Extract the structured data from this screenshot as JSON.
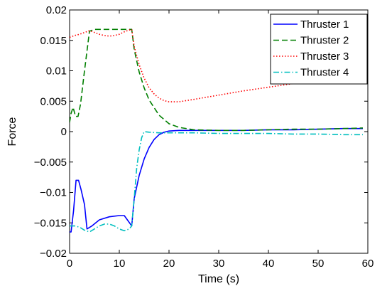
{
  "chart_data": {
    "type": "line",
    "title": "",
    "xlabel": "Time (s)",
    "ylabel": "Force",
    "xlim": [
      0,
      60
    ],
    "ylim": [
      -0.02,
      0.02
    ],
    "x_ticks": [
      0,
      10,
      20,
      30,
      40,
      50,
      60
    ],
    "x_tick_labels": [
      "0",
      "10",
      "20",
      "30",
      "40",
      "50",
      "60"
    ],
    "y_ticks": [
      -0.02,
      -0.015,
      -0.01,
      -0.005,
      0,
      0.005,
      0.01,
      0.015,
      0.02
    ],
    "y_tick_labels": [
      "−0.02",
      "−0.015",
      "−0.01",
      "−0.005",
      "0",
      "0.005",
      "0.01",
      "0.015",
      "0.02"
    ],
    "grid": false,
    "legend_position": "top-right",
    "series": [
      {
        "name": "Thruster 1",
        "color": "#0000ff",
        "dash": "solid",
        "x": [
          0,
          0.3,
          0.8,
          1.3,
          1.8,
          2.3,
          3.0,
          3.5,
          4.5,
          6,
          8,
          10,
          11,
          12.5,
          13,
          14,
          15,
          16,
          17,
          18,
          19,
          20,
          22,
          25,
          30,
          35,
          40,
          45,
          50,
          55,
          59
        ],
        "y": [
          -0.0165,
          -0.0165,
          -0.013,
          -0.008,
          -0.008,
          -0.0095,
          -0.012,
          -0.016,
          -0.0155,
          -0.0145,
          -0.014,
          -0.0138,
          -0.0138,
          -0.0155,
          -0.011,
          -0.0072,
          -0.0045,
          -0.0026,
          -0.0013,
          -0.0005,
          -0.0001,
          0.0001,
          0.0002,
          0.0002,
          0.0002,
          0.0002,
          0.0003,
          0.0003,
          0.0004,
          0.0005,
          0.0005
        ]
      },
      {
        "name": "Thruster 2",
        "color": "#007f00",
        "dash": "8,4",
        "x": [
          0,
          0.3,
          0.7,
          1.2,
          1.7,
          2.2,
          3.0,
          4.0,
          5,
          8,
          10,
          12.5,
          13,
          14,
          15,
          16,
          18,
          20,
          22,
          25,
          30,
          35,
          40,
          45,
          50,
          55,
          59
        ],
        "y": [
          0.0015,
          0.003,
          0.004,
          0.0025,
          0.0025,
          0.0045,
          0.01,
          0.0165,
          0.0168,
          0.0168,
          0.0168,
          0.0168,
          0.0135,
          0.0098,
          0.0072,
          0.0052,
          0.0027,
          0.0013,
          0.0007,
          0.0003,
          0.0002,
          0.0002,
          0.0003,
          0.0004,
          0.0004,
          0.0005,
          0.0006
        ]
      },
      {
        "name": "Thruster 3",
        "color": "#ff0000",
        "dash": "1.5,2.5",
        "x": [
          0,
          1,
          2,
          3,
          4,
          5,
          6,
          7,
          8,
          9,
          10,
          11,
          12,
          12.5,
          13,
          14,
          15,
          16,
          17,
          18,
          19,
          20,
          22,
          25,
          30,
          35,
          40,
          45,
          48
        ],
        "y": [
          0.0155,
          0.0158,
          0.016,
          0.0163,
          0.0166,
          0.0163,
          0.016,
          0.0158,
          0.0157,
          0.0158,
          0.016,
          0.0164,
          0.0167,
          0.0168,
          0.014,
          0.011,
          0.0088,
          0.0072,
          0.0062,
          0.0055,
          0.0051,
          0.0049,
          0.0049,
          0.0053,
          0.006,
          0.0067,
          0.0073,
          0.0079,
          0.0082
        ]
      },
      {
        "name": "Thruster 4",
        "color": "#00bfbf",
        "dash": "8,3,1.5,3",
        "x": [
          0,
          1,
          2,
          3,
          4,
          5,
          6,
          7,
          8,
          9,
          10,
          11,
          12,
          12.5,
          13,
          13.5,
          14,
          14.5,
          15,
          16,
          18,
          20,
          25,
          30,
          35,
          40,
          45,
          50,
          55,
          59
        ],
        "y": [
          -0.0155,
          -0.0155,
          -0.0157,
          -0.0162,
          -0.0165,
          -0.016,
          -0.0155,
          -0.0152,
          -0.0152,
          -0.0155,
          -0.016,
          -0.0163,
          -0.016,
          -0.0155,
          -0.011,
          -0.006,
          -0.003,
          -0.001,
          0.0,
          -0.0001,
          -0.0002,
          -0.0002,
          -0.0002,
          -0.0003,
          -0.0003,
          -0.0003,
          -0.0004,
          -0.0004,
          -0.0005,
          -0.0005
        ]
      }
    ]
  }
}
